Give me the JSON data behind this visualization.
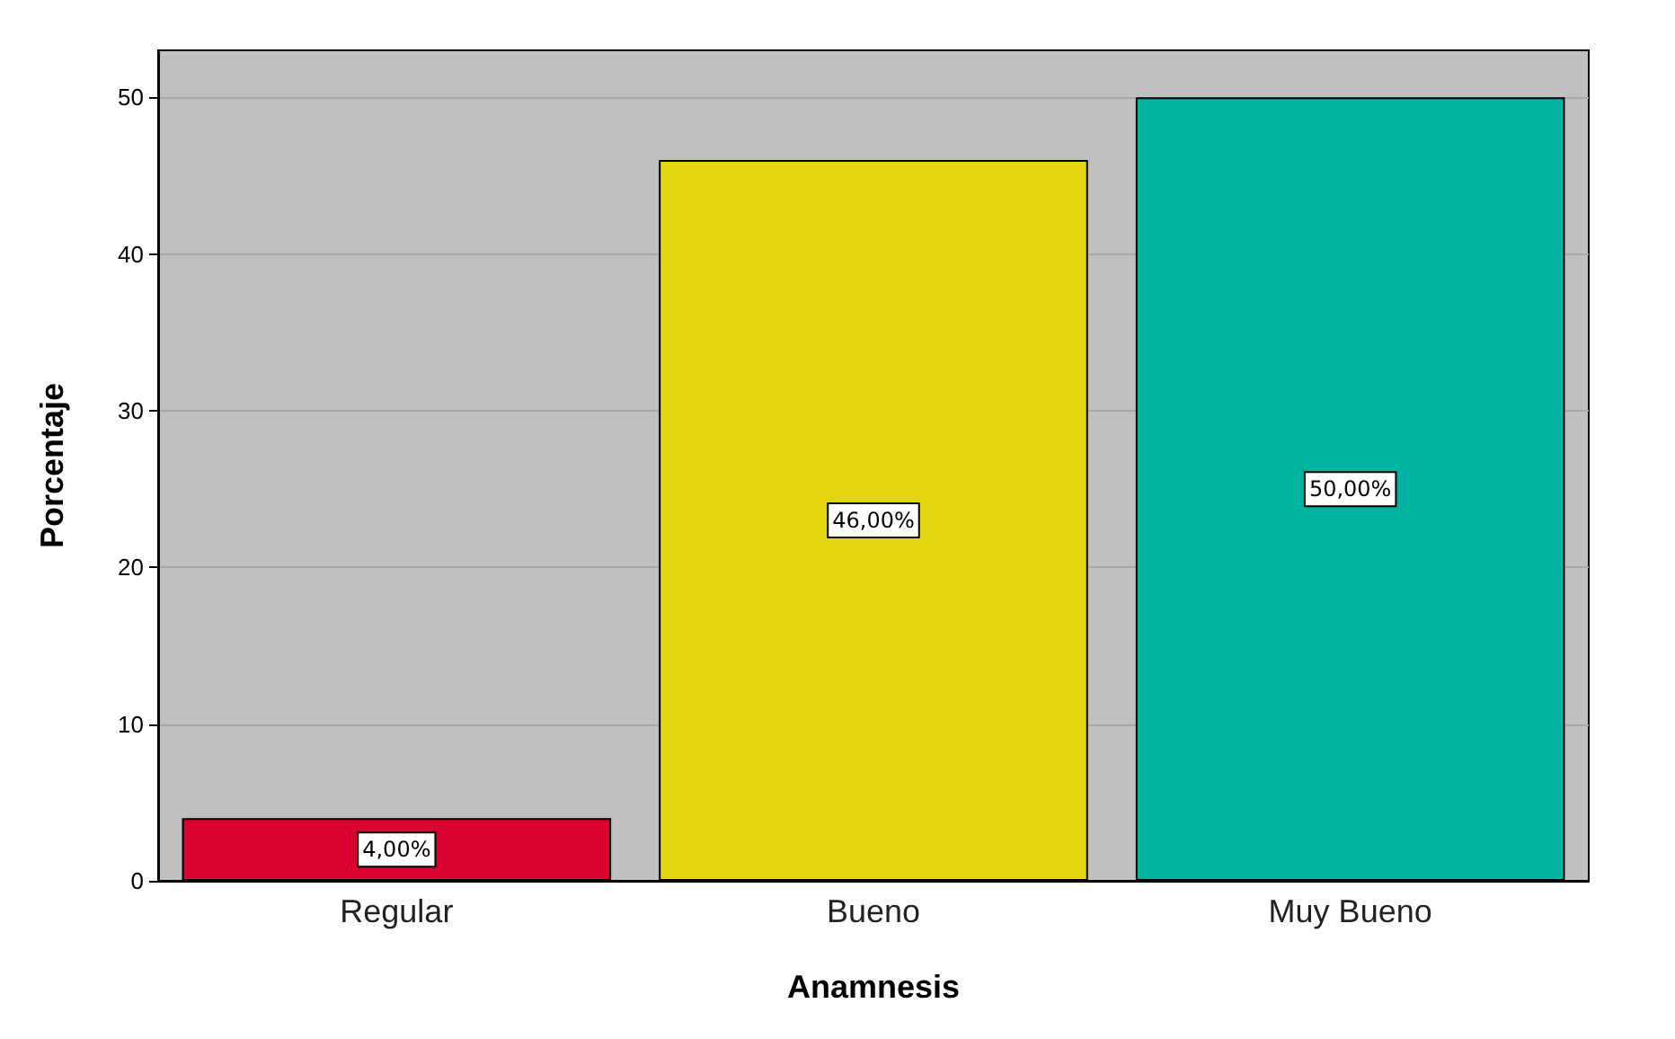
{
  "chart_data": {
    "type": "bar",
    "xlabel": "Anamnesis",
    "ylabel": "Porcentaje",
    "categories": [
      "Regular",
      "Bueno",
      "Muy Bueno"
    ],
    "values": [
      4,
      46,
      50
    ],
    "colors": [
      "#d8002d",
      "#e3d60f",
      "#00b3a0"
    ],
    "value_labels": [
      "4,00%",
      "46,00%",
      "50,00%"
    ],
    "ylim": [
      0,
      53
    ],
    "yticks": [
      0,
      10,
      20,
      30,
      40,
      50
    ],
    "grid": "y"
  }
}
